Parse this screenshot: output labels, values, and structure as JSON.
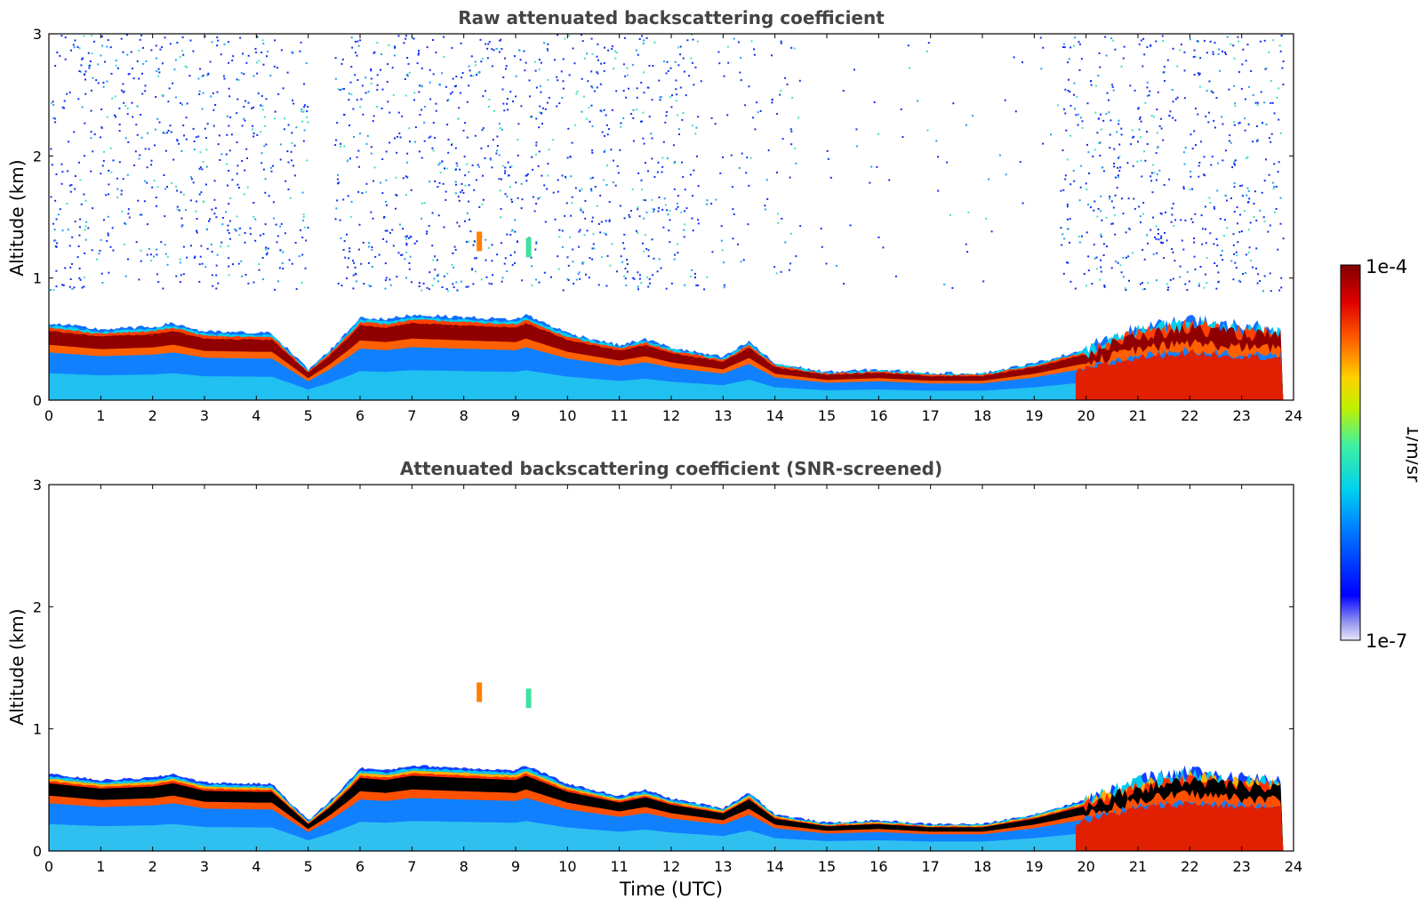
{
  "figure": {
    "xlabel": "Time (UTC)",
    "colorbar": {
      "label": "1/m/sr",
      "max_label": "1e-4",
      "min_label": "1e-7",
      "scale": "log",
      "colormap": "jet",
      "colors": [
        "#e8e8f8",
        "#b0b0f0",
        "#7070ee",
        "#0000ff",
        "#0060ff",
        "#00b0ff",
        "#00e0e0",
        "#40f0a0",
        "#a0f040",
        "#f0f000",
        "#ffb000",
        "#ff6000",
        "#ff0000",
        "#c00000",
        "#800000"
      ]
    }
  },
  "chart_data": [
    {
      "type": "heatmap",
      "title": "Raw attenuated backscattering coefficient",
      "xlabel": "",
      "ylabel": "Altitude (km)",
      "xlim": [
        0,
        24
      ],
      "ylim": [
        0,
        3
      ],
      "xticks": [
        "0",
        "1",
        "2",
        "3",
        "4",
        "5",
        "6",
        "7",
        "8",
        "9",
        "10",
        "11",
        "12",
        "13",
        "14",
        "15",
        "16",
        "17",
        "18",
        "19",
        "20",
        "21",
        "22",
        "23",
        "24"
      ],
      "yticks": [
        "0",
        "1",
        "2",
        "3"
      ],
      "boundary_layer_top_km": {
        "time": [
          0,
          1,
          2,
          2.4,
          3,
          4,
          4.3,
          5,
          5.4,
          5.8,
          6,
          6.5,
          7,
          8,
          9,
          9.2,
          10,
          11,
          11.5,
          12,
          13,
          13.5,
          14,
          15,
          16,
          17,
          18,
          19,
          20,
          21,
          22,
          23,
          23.8
        ],
        "value": [
          0.63,
          0.58,
          0.6,
          0.63,
          0.56,
          0.55,
          0.55,
          0.25,
          0.4,
          0.58,
          0.68,
          0.66,
          0.7,
          0.68,
          0.66,
          0.7,
          0.55,
          0.45,
          0.5,
          0.43,
          0.35,
          0.48,
          0.3,
          0.23,
          0.25,
          0.22,
          0.22,
          0.3,
          0.42,
          0.58,
          0.65,
          0.6,
          0.58
        ]
      },
      "noise_region_km": [
        1.0,
        3.0
      ]
    },
    {
      "type": "heatmap",
      "title": "Attenuated backscattering coefficient (SNR-screened)",
      "xlabel": "Time (UTC)",
      "ylabel": "Altitude (km)",
      "xlim": [
        0,
        24
      ],
      "ylim": [
        0,
        3
      ],
      "xticks": [
        "0",
        "1",
        "2",
        "3",
        "4",
        "5",
        "6",
        "7",
        "8",
        "9",
        "10",
        "11",
        "12",
        "13",
        "14",
        "15",
        "16",
        "17",
        "18",
        "19",
        "20",
        "21",
        "22",
        "23",
        "24"
      ],
      "yticks": [
        "0",
        "1",
        "2",
        "3"
      ],
      "cloud_features": [
        {
          "time": 8.3,
          "altitude_km": 1.3
        },
        {
          "time": 9.25,
          "altitude_km": 1.25
        }
      ]
    }
  ]
}
